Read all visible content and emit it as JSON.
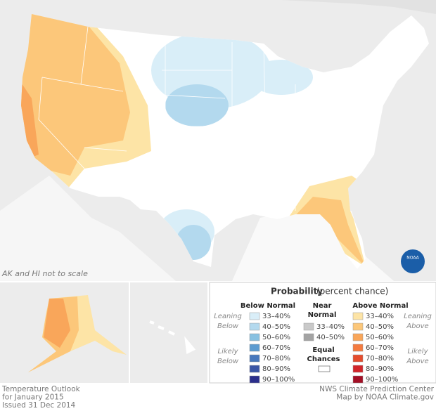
{
  "map": {
    "scale_note": "AK and HI not to scale",
    "logo": "NOAA"
  },
  "legend": {
    "title": "Probability",
    "subtitle": "(percent chance)",
    "below": {
      "header": "Below Normal",
      "leaning": [
        "Leaning",
        "Below"
      ],
      "likely": [
        "Likely",
        "Below"
      ],
      "items": [
        {
          "label": "33–40%",
          "color": "#d9eef8"
        },
        {
          "label": "40–50%",
          "color": "#b3d9ee"
        },
        {
          "label": "50–60%",
          "color": "#88c1e1"
        },
        {
          "label": "60–70%",
          "color": "#5c9bd0"
        },
        {
          "label": "70–80%",
          "color": "#4878bc"
        },
        {
          "label": "80–90%",
          "color": "#3a55a5"
        },
        {
          "label": "90–100%",
          "color": "#2b2f8b"
        }
      ]
    },
    "near": {
      "header": [
        "Near",
        "Normal"
      ],
      "items": [
        {
          "label": "33–40%",
          "color": "#c9c9c9"
        },
        {
          "label": "40–50%",
          "color": "#a3a3a3"
        }
      ]
    },
    "equal": {
      "label": [
        "Equal",
        "Chances"
      ],
      "color": "#ffffff"
    },
    "above": {
      "header": "Above Normal",
      "leaning": [
        "Leaning",
        "Above"
      ],
      "likely": [
        "Likely",
        "Above"
      ],
      "items": [
        {
          "label": "33–40%",
          "color": "#fde4a6"
        },
        {
          "label": "40–50%",
          "color": "#fcc77a"
        },
        {
          "label": "50–60%",
          "color": "#f9a65a"
        },
        {
          "label": "60–70%",
          "color": "#f47b40"
        },
        {
          "label": "70–80%",
          "color": "#e54d2e"
        },
        {
          "label": "80–90%",
          "color": "#d1252a"
        },
        {
          "label": "90–100%",
          "color": "#a30f25"
        }
      ]
    }
  },
  "footer": {
    "left": [
      "Temperature Outlook",
      "for January 2015",
      "Issued 31 Dec 2014"
    ],
    "right": [
      "NWS Climate Prediction Center",
      "Map by NOAA Climate.gov"
    ]
  }
}
